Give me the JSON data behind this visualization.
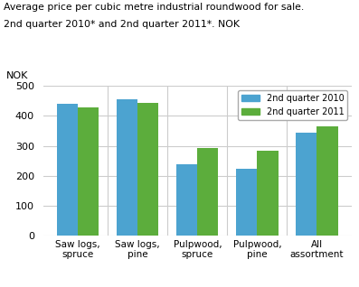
{
  "title_line1": "Average price per cubic metre industrial roundwood for sale.",
  "title_line2": "2nd quarter 2010* and 2nd quarter 2011*. NOK",
  "nok_label": "NOK",
  "categories": [
    "Saw logs,\nspruce",
    "Saw logs,\npine",
    "Pulpwood,\nspruce",
    "Pulpwood,\npine",
    "All\nassortment"
  ],
  "values_2010": [
    440,
    455,
    237,
    223,
    345
  ],
  "values_2011": [
    430,
    445,
    292,
    284,
    365
  ],
  "color_2010": "#4CA3D0",
  "color_2011": "#5CAD3C",
  "legend_labels": [
    "2nd quarter 2010",
    "2nd quarter 2011"
  ],
  "ylim": [
    0,
    500
  ],
  "yticks": [
    0,
    100,
    200,
    300,
    400,
    500
  ],
  "bar_width": 0.35,
  "background_color": "#ffffff",
  "grid_color": "#cccccc"
}
